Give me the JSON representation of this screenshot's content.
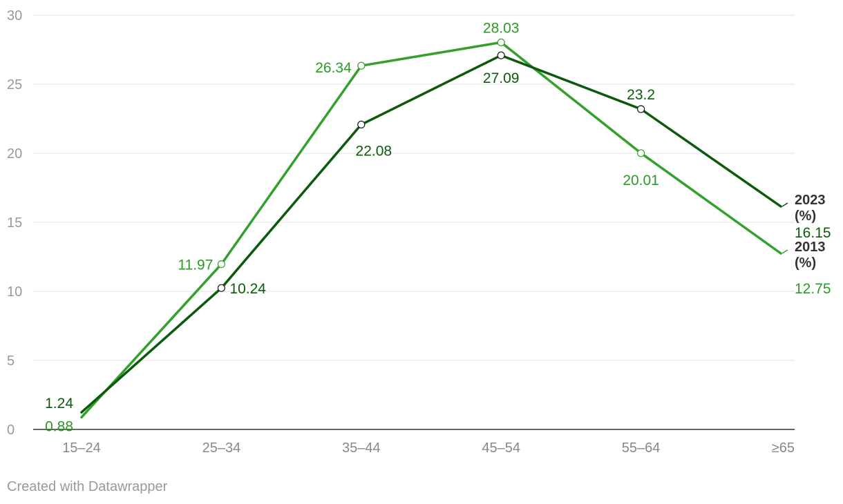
{
  "chart_data": {
    "type": "line",
    "categories": [
      "15–24",
      "25–34",
      "35–44",
      "45–54",
      "55–64",
      "≥65"
    ],
    "ylim": [
      0,
      30
    ],
    "yticks": [
      0,
      5,
      10,
      15,
      20,
      25,
      30
    ],
    "grid": true,
    "series": [
      {
        "name": "2023 (%)",
        "name_lines": [
          "2023",
          "(%)"
        ],
        "values": [
          1.24,
          10.24,
          22.08,
          27.09,
          23.2,
          16.15
        ],
        "labels": [
          "1.24",
          "10.24",
          "22.08",
          "27.09",
          "23.2",
          "16.15"
        ],
        "color": "#0b5a0b",
        "label_color": "#0b5a0b"
      },
      {
        "name": "2013 (%)",
        "name_lines": [
          "2013",
          "(%)"
        ],
        "values": [
          0.88,
          11.97,
          26.34,
          28.03,
          20.01,
          12.75
        ],
        "labels": [
          "0.88",
          "11.97",
          "26.34",
          "28.03",
          "20.01",
          "12.75"
        ],
        "color": "#33a02c",
        "label_color": "#2a9a22"
      }
    ]
  },
  "footer": {
    "credit": "Created with Datawrapper"
  }
}
